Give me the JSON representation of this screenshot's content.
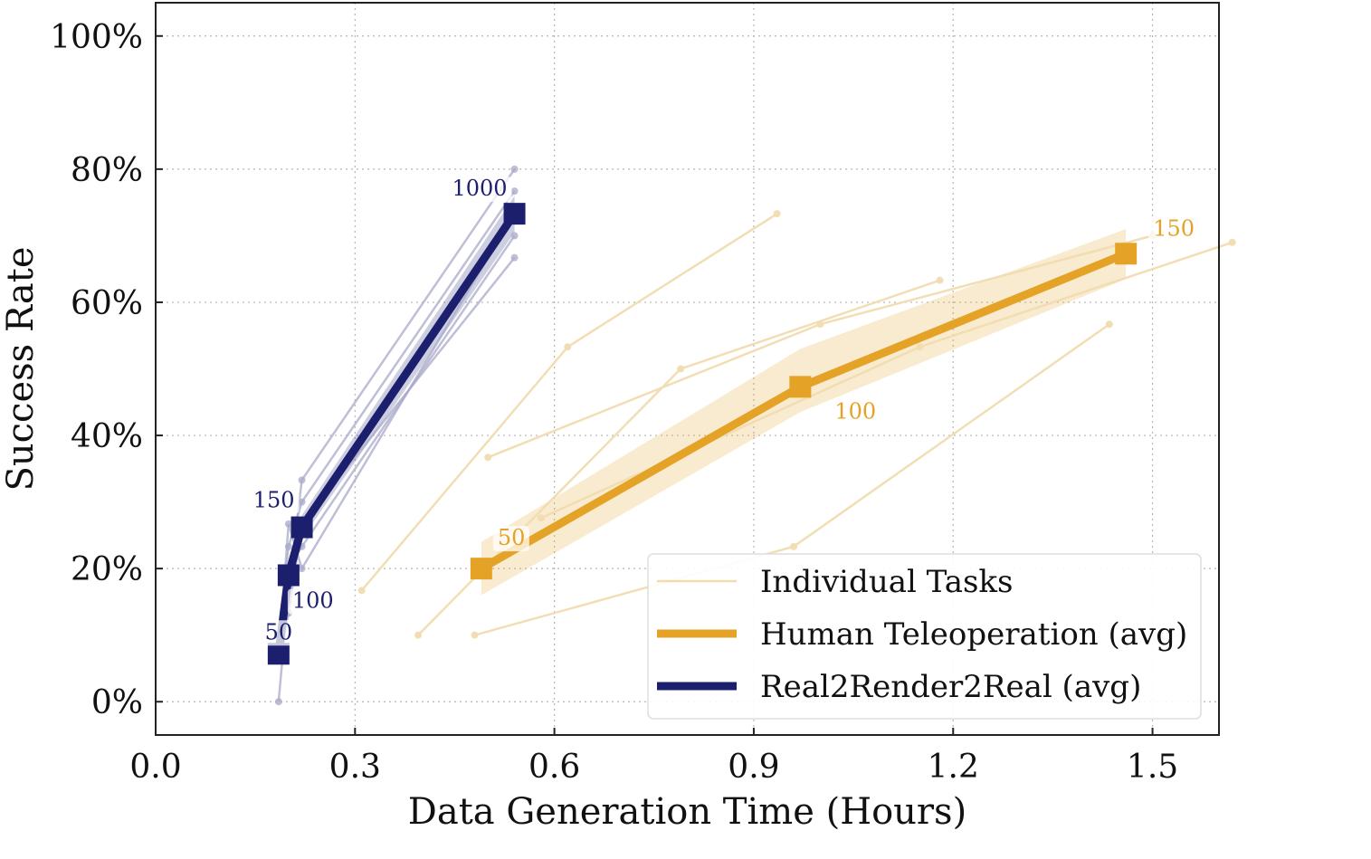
{
  "chart_data": {
    "type": "line",
    "title": "",
    "xlabel": "Data Generation Time (Hours)",
    "ylabel": "Success Rate",
    "xlim": [
      0.0,
      1.6
    ],
    "ylim": [
      -5,
      105
    ],
    "xticks": [
      0.0,
      0.3,
      0.6,
      0.9,
      1.2,
      1.5
    ],
    "xtick_labels": [
      "0.0",
      "0.3",
      "0.6",
      "0.9",
      "1.2",
      "1.5"
    ],
    "yticks": [
      0,
      20,
      40,
      60,
      80,
      100
    ],
    "ytick_labels": [
      "0%",
      "20%",
      "40%",
      "60%",
      "80%",
      "100%"
    ],
    "grid": true,
    "legend_position": "bottom-right",
    "legend": [
      {
        "label": "Individual Tasks",
        "style": "thin",
        "color": "#f1dcb0"
      },
      {
        "label": "Human Teleoperation (avg)",
        "style": "thick",
        "color": "#e4a226"
      },
      {
        "label": "Real2Render2Real (avg)",
        "style": "thick",
        "color": "#1c1f6e"
      }
    ],
    "series": [
      {
        "name": "Human Teleoperation (avg)",
        "color": "#e4a226",
        "x": [
          0.49,
          0.97,
          1.46
        ],
        "y": [
          20,
          47.3,
          67.3
        ],
        "band_lower": [
          16,
          43.5,
          63.5
        ],
        "band_upper": [
          24,
          53,
          71
        ],
        "point_labels": [
          "50",
          "100",
          "150"
        ]
      },
      {
        "name": "Real2Render2Real (avg)",
        "color": "#1c1f6e",
        "x": [
          0.185,
          0.2,
          0.22,
          0.54
        ],
        "y": [
          7.2,
          19,
          26.2,
          73.3
        ],
        "band_lower": [
          6.5,
          17.5,
          24.5,
          70.5
        ],
        "band_upper": [
          8,
          20.5,
          28,
          76
        ],
        "point_labels": [
          "50",
          "100",
          "150",
          "1000"
        ]
      }
    ],
    "individual_tasks": {
      "human_color": "#f1dcb0",
      "r2r2r_color": "#a8a9c8",
      "human": [
        [
          [
            0.31,
            16.7
          ],
          [
            0.62,
            53.3
          ],
          [
            0.935,
            73.3
          ]
        ],
        [
          [
            0.395,
            10
          ],
          [
            0.79,
            50
          ],
          [
            1.18,
            63.3
          ]
        ],
        [
          [
            0.5,
            36.7
          ],
          [
            1.0,
            56.7
          ],
          [
            1.5,
            70
          ]
        ],
        [
          [
            0.48,
            10
          ],
          [
            0.96,
            23.3
          ],
          [
            1.435,
            56.7
          ]
        ],
        [
          [
            0.58,
            27.6
          ],
          [
            1.15,
            53.3
          ],
          [
            1.62,
            69
          ]
        ]
      ],
      "r2r2r": [
        [
          [
            0.185,
            0
          ],
          [
            0.2,
            16.7
          ],
          [
            0.22,
            33.3
          ],
          [
            0.54,
            80
          ]
        ],
        [
          [
            0.185,
            10
          ],
          [
            0.2,
            23.3
          ],
          [
            0.22,
            30
          ],
          [
            0.54,
            76.7
          ]
        ],
        [
          [
            0.185,
            6.7
          ],
          [
            0.2,
            13.3
          ],
          [
            0.22,
            26.7
          ],
          [
            0.54,
            66.7
          ]
        ],
        [
          [
            0.185,
            10
          ],
          [
            0.2,
            20
          ],
          [
            0.22,
            23.3
          ],
          [
            0.54,
            70
          ]
        ],
        [
          [
            0.185,
            6.7
          ],
          [
            0.2,
            26.7
          ],
          [
            0.22,
            20
          ],
          [
            0.54,
            73.3
          ]
        ]
      ]
    }
  }
}
